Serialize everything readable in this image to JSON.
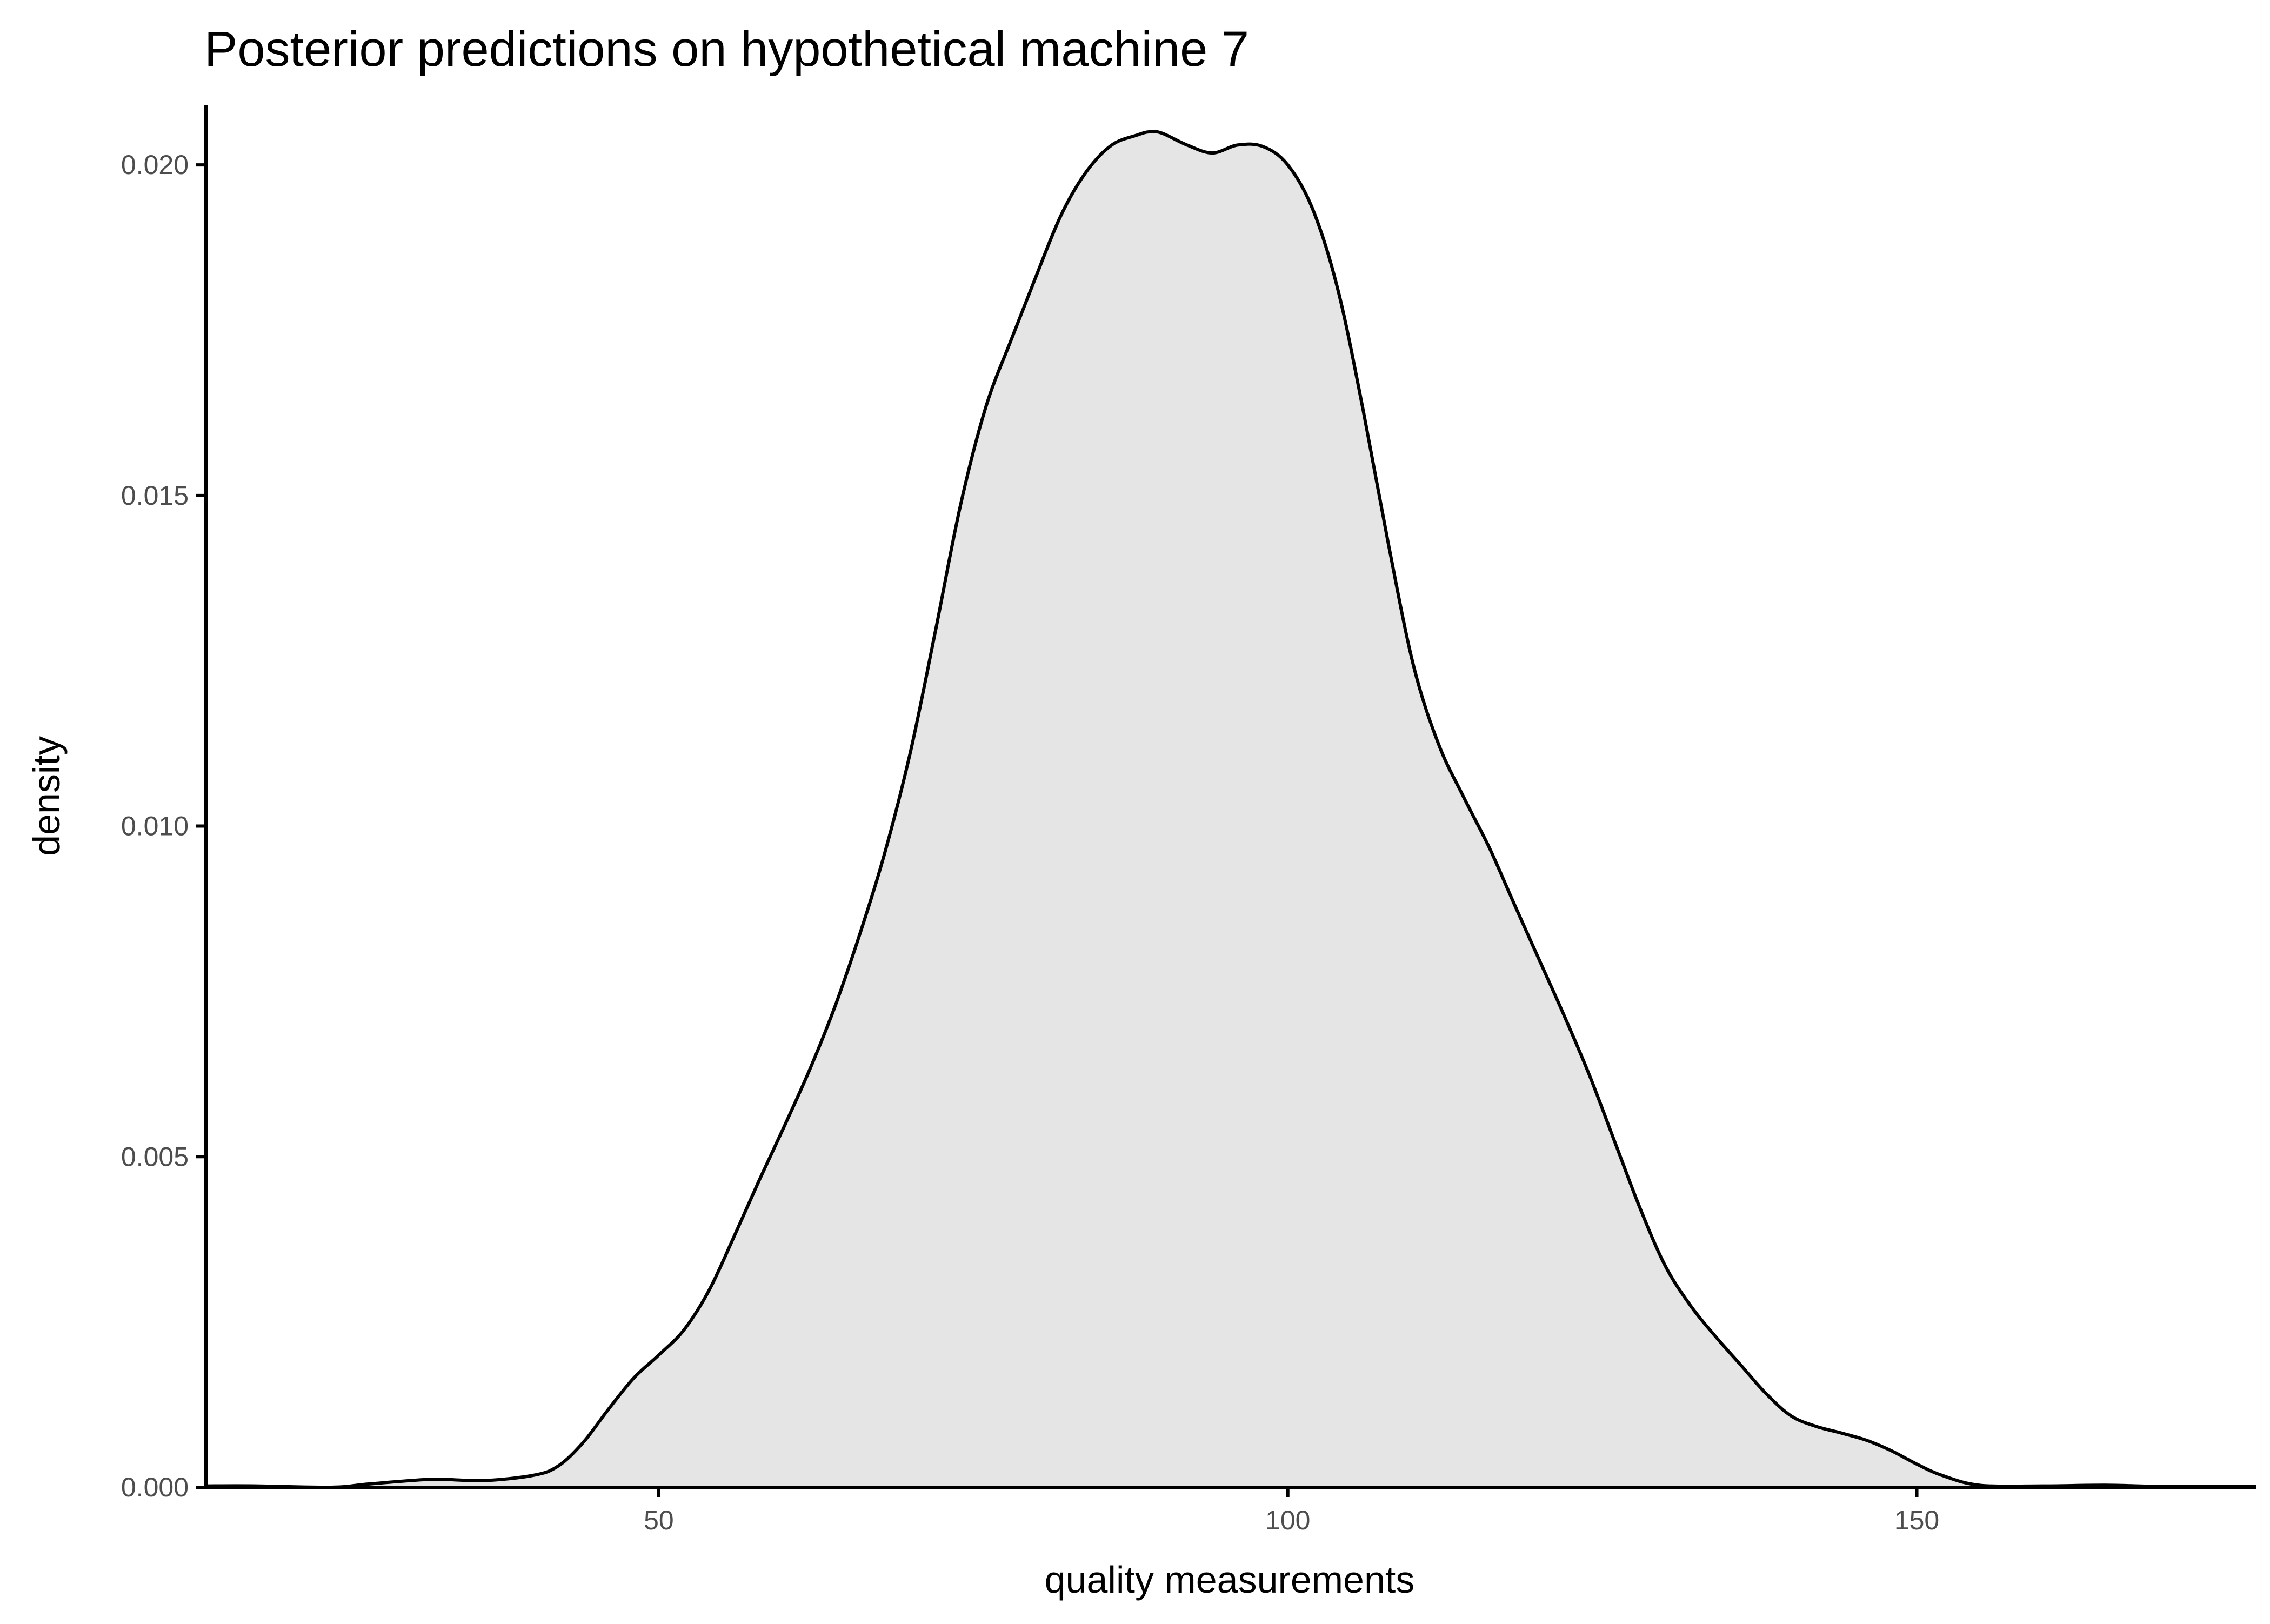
{
  "colors": {
    "fill": "#e5e5e5",
    "line": "#000000",
    "tick_text": "#4d4d4d",
    "background": "#ffffff"
  },
  "chart_data": {
    "type": "area",
    "title": "Posterior predictions on hypothetical machine 7",
    "xlabel": "quality measurements",
    "ylabel": "density",
    "xlim": [
      14,
      177
    ],
    "ylim": [
      0,
      0.0209
    ],
    "x_ticks": [
      50,
      100,
      150
    ],
    "x_tick_labels": [
      "50",
      "100",
      "150"
    ],
    "y_ticks": [
      0.0,
      0.005,
      0.01,
      0.015,
      0.02
    ],
    "y_tick_labels": [
      "0.000",
      "0.005",
      "0.010",
      "0.015",
      "0.020"
    ],
    "grid": false,
    "legend": "none",
    "series": [
      {
        "x": [
          14,
          18,
          24,
          27,
          32,
          36,
          40,
          42,
          44,
          46,
          48,
          50,
          52,
          54,
          56,
          58,
          60,
          62,
          64,
          66,
          68,
          70,
          72,
          74,
          76,
          78,
          80,
          82,
          84,
          86,
          88,
          89,
          90,
          92,
          94,
          96,
          98,
          100,
          102,
          104,
          106,
          108,
          110,
          112,
          114,
          116,
          118,
          120,
          122,
          124,
          126,
          128,
          130,
          132,
          134,
          136,
          138,
          140,
          142,
          144,
          146,
          148,
          150,
          152,
          155,
          160,
          165,
          170,
          177
        ],
        "y": [
          2e-05,
          2e-05,
          0.0,
          5e-05,
          0.00012,
          0.0001,
          0.00018,
          0.00032,
          0.00068,
          0.00118,
          0.00165,
          0.002,
          0.00238,
          0.00298,
          0.0038,
          0.00465,
          0.00547,
          0.00632,
          0.00727,
          0.00838,
          0.00962,
          0.01112,
          0.01296,
          0.01487,
          0.01634,
          0.01735,
          0.01832,
          0.01925,
          0.0199,
          0.0203,
          0.02045,
          0.0205,
          0.02048,
          0.0203,
          0.02018,
          0.0203,
          0.02028,
          0.02,
          0.01932,
          0.0181,
          0.01628,
          0.01426,
          0.01242,
          0.01123,
          0.01043,
          0.00968,
          0.00882,
          0.00797,
          0.00712,
          0.00622,
          0.00522,
          0.00422,
          0.00335,
          0.00275,
          0.00228,
          0.00185,
          0.00142,
          0.00108,
          0.00092,
          0.00082,
          0.00071,
          0.00055,
          0.00035,
          0.00018,
          3e-05,
          2e-05,
          3e-05,
          1e-05,
          1e-05
        ]
      }
    ]
  }
}
